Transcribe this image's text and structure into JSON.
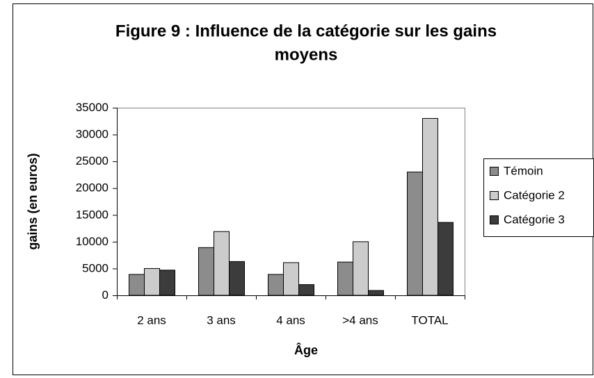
{
  "chart_data": {
    "type": "bar",
    "title": "Figure 9 : Influence de la catégorie sur les gains moyens",
    "x_label": "Âge",
    "y_label": "gains (en euros)",
    "categories": [
      "2 ans",
      "3 ans",
      "4 ans",
      ">4 ans",
      "TOTAL"
    ],
    "series": [
      {
        "name": "Témoin",
        "color": "#8c8c8c",
        "values": [
          3900,
          8900,
          3900,
          6200,
          23000
        ]
      },
      {
        "name": "Catégorie 2",
        "color": "#cccccc",
        "values": [
          5000,
          11900,
          6100,
          10000,
          33000
        ]
      },
      {
        "name": "Catégorie 3",
        "color": "#3c3c3c",
        "values": [
          4700,
          6300,
          2000,
          900,
          13600
        ]
      }
    ],
    "ylim": [
      0,
      35000
    ],
    "yticks": [
      0,
      5000,
      10000,
      15000,
      20000,
      25000,
      30000,
      35000
    ],
    "grid": false,
    "legend": "right"
  }
}
